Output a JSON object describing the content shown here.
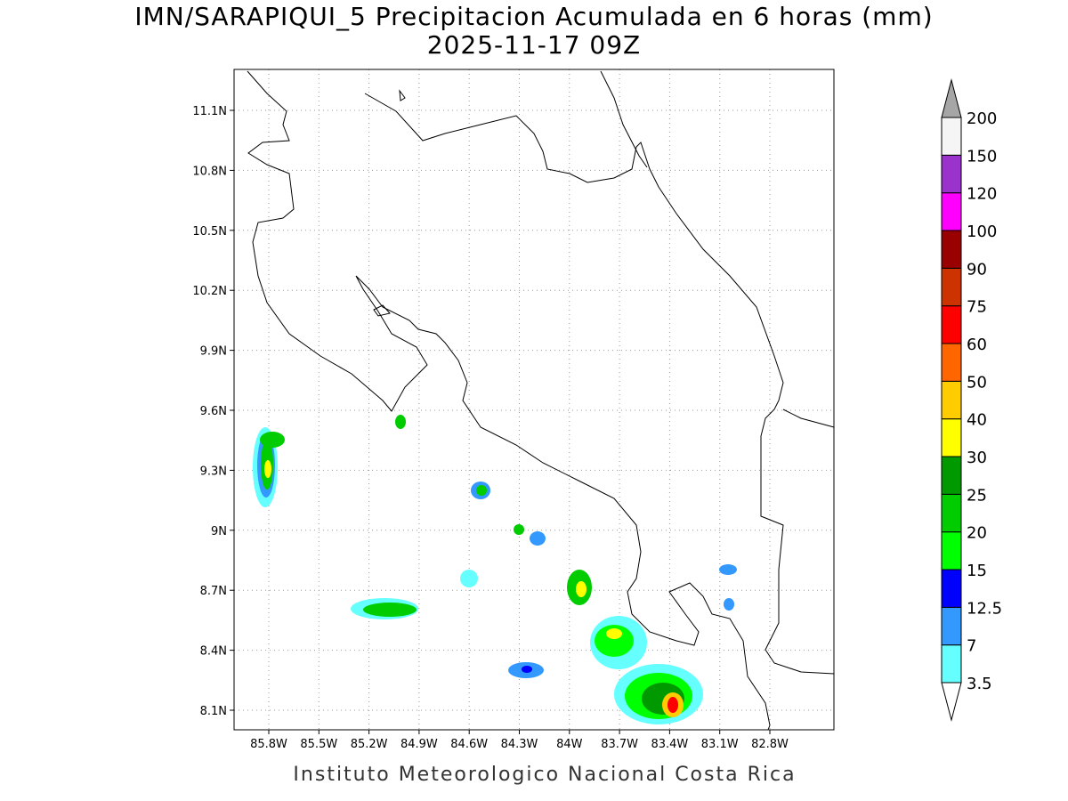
{
  "title": "IMN/SARAPIQUI_5 Precipitacion Acumulada en 6 horas (mm)",
  "subtitle": "2025-11-17 09Z",
  "footer": "Instituto Meteorologico Nacional Costa Rica",
  "map": {
    "lat_labels": [
      "11.1N",
      "10.8N",
      "10.5N",
      "10.2N",
      "9.9N",
      "9.6N",
      "9.3N",
      "9N",
      "8.7N",
      "8.4N",
      "8.1N"
    ],
    "lon_labels": [
      "85.8W",
      "85.5W",
      "85.2W",
      "84.9W",
      "84.6W",
      "84.3W",
      "84W",
      "83.7W",
      "83.4W",
      "83.1W",
      "82.8W"
    ]
  },
  "colorbar": {
    "levels": [
      3.5,
      7,
      12.5,
      15,
      20,
      25,
      30,
      40,
      50,
      60,
      75,
      90,
      100,
      120,
      150,
      200
    ],
    "colors": [
      "#66ffff",
      "#3399ff",
      "#0000ff",
      "#00ff00",
      "#00cc00",
      "#009900",
      "#ffff00",
      "#ffcc00",
      "#ff6600",
      "#ff0000",
      "#cc3300",
      "#990000",
      "#ff00ff",
      "#9933cc",
      "#f5f5f5"
    ],
    "over_color": "#a6a6a6",
    "under_color": "#ffffff"
  }
}
